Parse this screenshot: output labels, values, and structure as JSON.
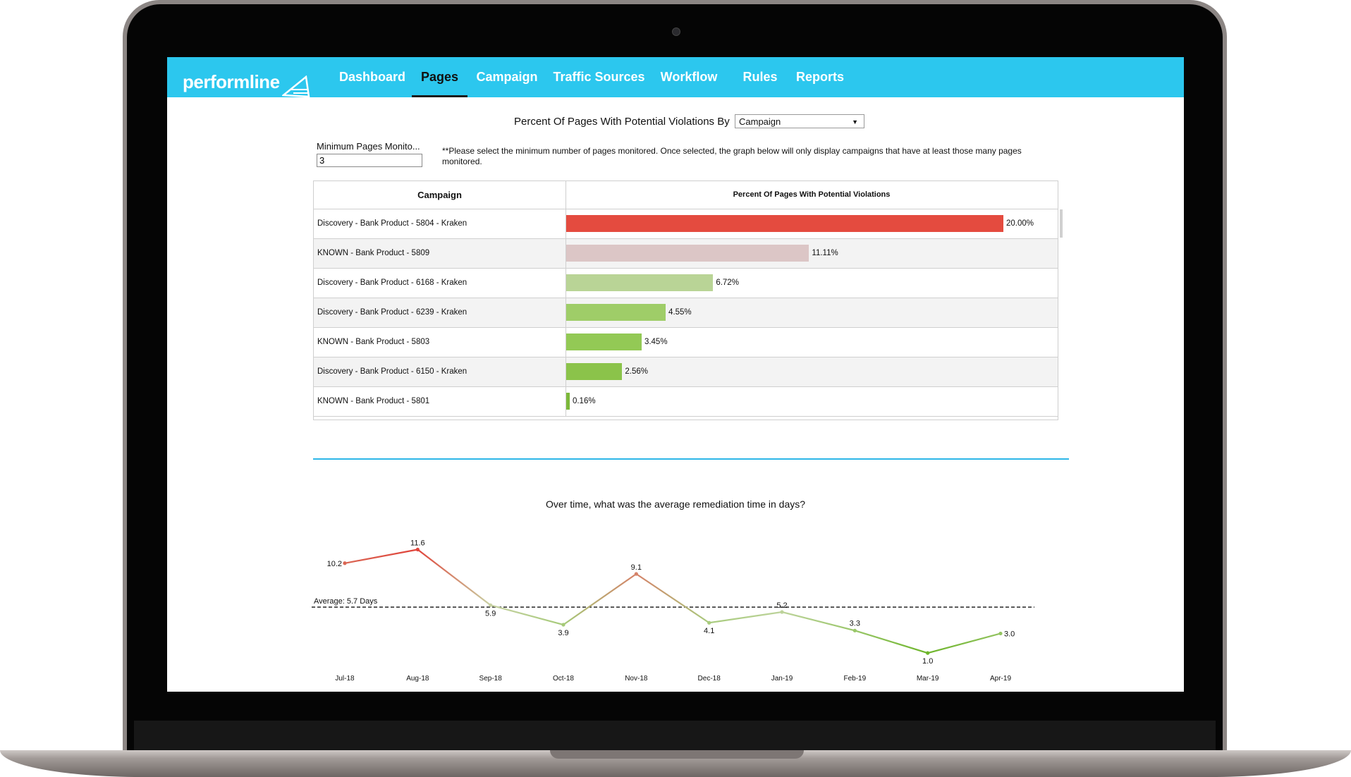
{
  "app": {
    "brand": "performline"
  },
  "nav": [
    {
      "label": "Dashboard",
      "active": false
    },
    {
      "label": "Pages",
      "active": true
    },
    {
      "label": "Campaign",
      "active": false
    },
    {
      "label": "Traffic Sources",
      "active": false
    },
    {
      "label": "Workflow",
      "active": false
    },
    {
      "label": "Rules",
      "active": false
    },
    {
      "label": "Reports",
      "active": false
    }
  ],
  "filters": {
    "heading": "Percent Of Pages With Potential Violations By",
    "group_by": "Campaign",
    "min_label": "Minimum Pages Monito...",
    "min_value": "3",
    "note": "**Please select the minimum number of pages monitored. Once selected, the graph below will only display campaigns that have at least those many pages monitored."
  },
  "table": {
    "col_campaign": "Campaign",
    "col_percent": "Percent Of Pages With Potential Violations",
    "rows": [
      {
        "campaign": "Discovery - Bank Product - 5804 - Kraken",
        "percent": 20.0,
        "label": "20.00%",
        "color": "#e44b3f"
      },
      {
        "campaign": "KNOWN - Bank Product - 5809",
        "percent": 11.11,
        "label": "11.11%",
        "color": "#dcc6c6"
      },
      {
        "campaign": "Discovery - Bank Product - 6168 - Kraken",
        "percent": 6.72,
        "label": "6.72%",
        "color": "#b9d496"
      },
      {
        "campaign": "Discovery - Bank Product - 6239 - Kraken",
        "percent": 4.55,
        "label": "4.55%",
        "color": "#9fcd68"
      },
      {
        "campaign": "KNOWN - Bank Product - 5803",
        "percent": 3.45,
        "label": "3.45%",
        "color": "#93c955"
      },
      {
        "campaign": "Discovery - Bank Product - 6150 - Kraken",
        "percent": 2.56,
        "label": "2.56%",
        "color": "#8bc34a"
      },
      {
        "campaign": "KNOWN - Bank Product - 5801",
        "percent": 0.16,
        "label": "0.16%",
        "color": "#7cb83a"
      }
    ]
  },
  "chart_data": {
    "type": "line",
    "title": "Over time, what was the average remediation time in days?",
    "categories": [
      "Jul-18",
      "Aug-18",
      "Sep-18",
      "Oct-18",
      "Nov-18",
      "Dec-18",
      "Jan-19",
      "Feb-19",
      "Mar-19",
      "Apr-19"
    ],
    "series": [
      {
        "name": "Average remediation time (days)",
        "values": [
          10.2,
          11.6,
          5.9,
          3.9,
          9.1,
          4.1,
          5.2,
          3.3,
          1.0,
          3.0
        ]
      }
    ],
    "value_labels": [
      "10.2",
      "11.6",
      "5.9",
      "3.9",
      "9.1",
      "4.1",
      "5.2",
      "3.3",
      "1.0",
      "3.0"
    ],
    "average": {
      "value": 5.7,
      "label": "Average: 5.7 Days"
    },
    "ylim": [
      0,
      13
    ],
    "colors": {
      "high": "#e0433a",
      "mid": "#c7d7a8",
      "low": "#6db52a"
    }
  }
}
